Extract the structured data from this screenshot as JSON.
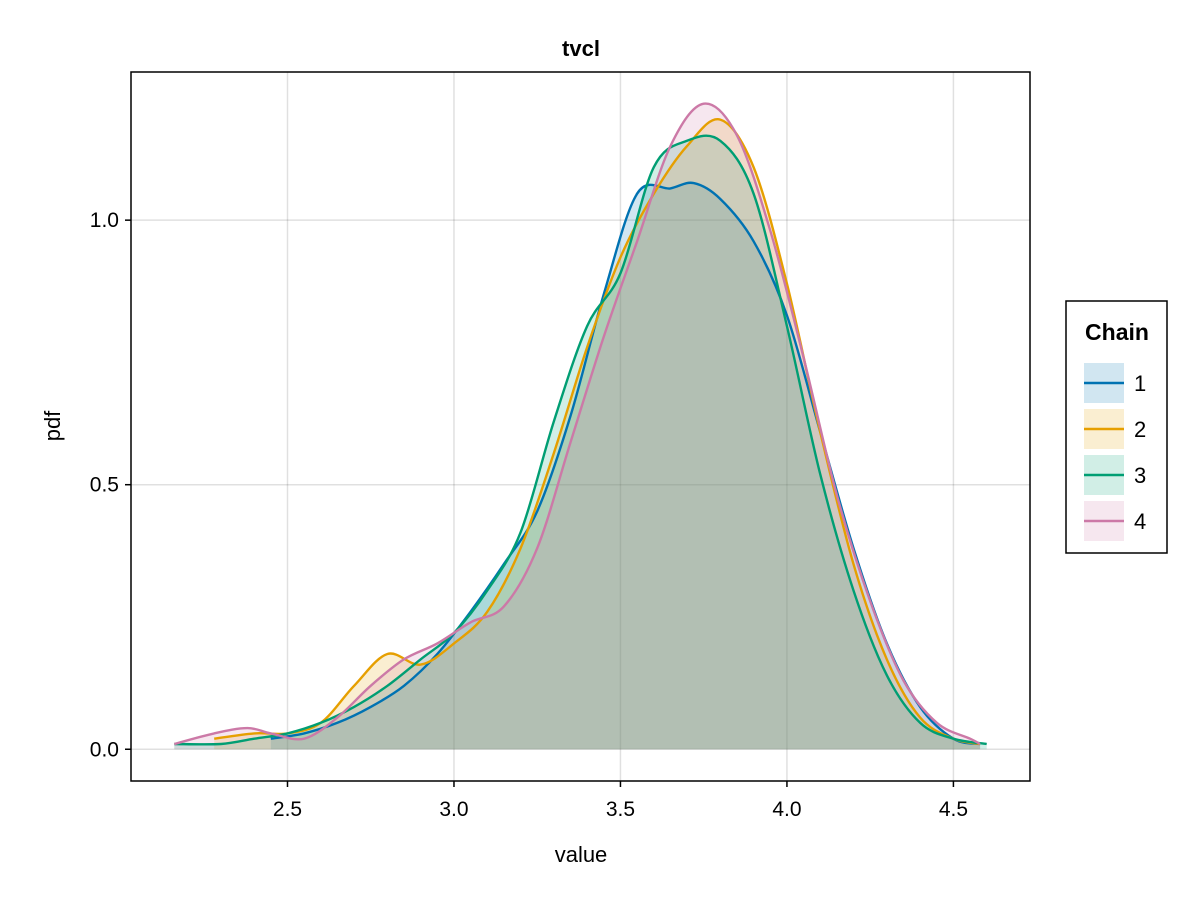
{
  "chart_data": {
    "type": "area",
    "title": "tvcl",
    "xlabel": "value",
    "ylabel": "pdf",
    "xlim": [
      2.03,
      4.73
    ],
    "ylim": [
      -0.06,
      1.28
    ],
    "xticks": [
      2.5,
      3.0,
      3.5,
      4.0,
      4.5
    ],
    "xtick_labels": [
      "2.5",
      "3.0",
      "3.5",
      "4.0",
      "4.5"
    ],
    "yticks": [
      0.0,
      0.5,
      1.0
    ],
    "ytick_labels": [
      "0.0",
      "0.5",
      "1.0"
    ],
    "grid": true,
    "legend": {
      "title": "Chain",
      "position": "right"
    },
    "series": [
      {
        "name": "1",
        "color": "#0072B2",
        "points": [
          [
            2.45,
            0.02
          ],
          [
            2.55,
            0.03
          ],
          [
            2.65,
            0.05
          ],
          [
            2.75,
            0.08
          ],
          [
            2.85,
            0.12
          ],
          [
            2.95,
            0.18
          ],
          [
            3.05,
            0.26
          ],
          [
            3.15,
            0.35
          ],
          [
            3.25,
            0.45
          ],
          [
            3.35,
            0.63
          ],
          [
            3.45,
            0.86
          ],
          [
            3.55,
            1.05
          ],
          [
            3.65,
            1.06
          ],
          [
            3.72,
            1.07
          ],
          [
            3.8,
            1.04
          ],
          [
            3.9,
            0.96
          ],
          [
            4.0,
            0.82
          ],
          [
            4.1,
            0.6
          ],
          [
            4.2,
            0.38
          ],
          [
            4.3,
            0.2
          ],
          [
            4.4,
            0.08
          ],
          [
            4.5,
            0.02
          ],
          [
            4.58,
            0.01
          ]
        ]
      },
      {
        "name": "2",
        "color": "#E69F00",
        "points": [
          [
            2.28,
            0.02
          ],
          [
            2.4,
            0.03
          ],
          [
            2.5,
            0.03
          ],
          [
            2.6,
            0.05
          ],
          [
            2.7,
            0.12
          ],
          [
            2.8,
            0.18
          ],
          [
            2.9,
            0.16
          ],
          [
            3.0,
            0.2
          ],
          [
            3.1,
            0.26
          ],
          [
            3.2,
            0.38
          ],
          [
            3.3,
            0.56
          ],
          [
            3.4,
            0.76
          ],
          [
            3.5,
            0.93
          ],
          [
            3.6,
            1.05
          ],
          [
            3.7,
            1.14
          ],
          [
            3.8,
            1.19
          ],
          [
            3.9,
            1.1
          ],
          [
            4.0,
            0.88
          ],
          [
            4.1,
            0.6
          ],
          [
            4.2,
            0.35
          ],
          [
            4.3,
            0.17
          ],
          [
            4.4,
            0.06
          ],
          [
            4.5,
            0.02
          ],
          [
            4.58,
            0.01
          ]
        ]
      },
      {
        "name": "3",
        "color": "#009E73",
        "points": [
          [
            2.16,
            0.01
          ],
          [
            2.3,
            0.01
          ],
          [
            2.4,
            0.02
          ],
          [
            2.5,
            0.03
          ],
          [
            2.6,
            0.05
          ],
          [
            2.7,
            0.08
          ],
          [
            2.8,
            0.12
          ],
          [
            2.9,
            0.17
          ],
          [
            3.0,
            0.22
          ],
          [
            3.1,
            0.3
          ],
          [
            3.2,
            0.41
          ],
          [
            3.3,
            0.62
          ],
          [
            3.4,
            0.8
          ],
          [
            3.5,
            0.9
          ],
          [
            3.6,
            1.1
          ],
          [
            3.7,
            1.15
          ],
          [
            3.8,
            1.15
          ],
          [
            3.9,
            1.05
          ],
          [
            4.0,
            0.8
          ],
          [
            4.1,
            0.52
          ],
          [
            4.2,
            0.3
          ],
          [
            4.3,
            0.14
          ],
          [
            4.4,
            0.05
          ],
          [
            4.5,
            0.02
          ],
          [
            4.6,
            0.01
          ]
        ]
      },
      {
        "name": "4",
        "color": "#CC79A7",
        "points": [
          [
            2.16,
            0.01
          ],
          [
            2.28,
            0.03
          ],
          [
            2.38,
            0.04
          ],
          [
            2.45,
            0.03
          ],
          [
            2.55,
            0.02
          ],
          [
            2.65,
            0.06
          ],
          [
            2.75,
            0.12
          ],
          [
            2.85,
            0.17
          ],
          [
            2.95,
            0.2
          ],
          [
            3.05,
            0.24
          ],
          [
            3.15,
            0.27
          ],
          [
            3.25,
            0.38
          ],
          [
            3.35,
            0.58
          ],
          [
            3.45,
            0.78
          ],
          [
            3.55,
            0.96
          ],
          [
            3.65,
            1.14
          ],
          [
            3.75,
            1.22
          ],
          [
            3.85,
            1.16
          ],
          [
            3.95,
            0.98
          ],
          [
            4.05,
            0.74
          ],
          [
            4.15,
            0.48
          ],
          [
            4.25,
            0.28
          ],
          [
            4.35,
            0.13
          ],
          [
            4.45,
            0.05
          ],
          [
            4.55,
            0.02
          ],
          [
            4.58,
            0.01
          ]
        ]
      }
    ]
  }
}
